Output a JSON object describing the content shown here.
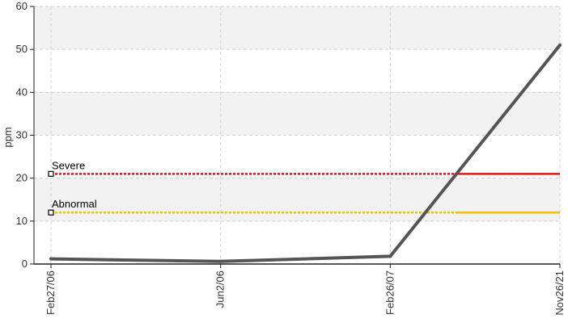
{
  "chart_data": {
    "type": "line",
    "ylabel": "ppm",
    "ylim": [
      0,
      60
    ],
    "yticks": [
      0,
      10,
      20,
      30,
      40,
      50,
      60
    ],
    "categories": [
      "Feb27/06",
      "Jun2/06",
      "Feb26/07",
      "Nov26/21"
    ],
    "series": [
      {
        "values": [
          1.2,
          0.6,
          1.8,
          51
        ],
        "color": "#555555"
      }
    ],
    "thresholds": [
      {
        "label": "Severe",
        "value": 21,
        "color": "#e81414"
      },
      {
        "label": "Abnormal",
        "value": 12,
        "color": "#f2c200"
      }
    ],
    "grid": true,
    "colors": {
      "band": "#f2f2f2",
      "grid": "#d0d0d0",
      "axis": "#222222"
    }
  }
}
